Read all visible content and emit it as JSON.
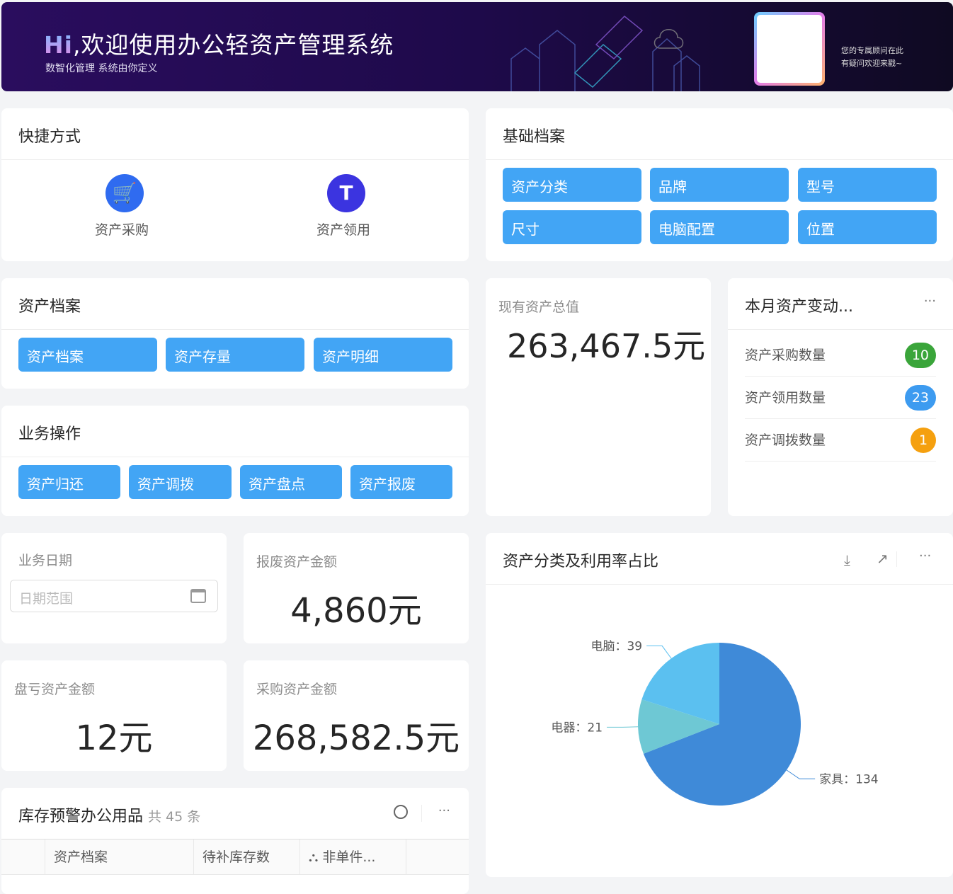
{
  "banner": {
    "hi": "Hi",
    "title": ",欢迎使用办公轻资产管理系统",
    "subtitle": "数智化管理 系统由你定义",
    "advisor_line1": "您的专属顾问在此",
    "advisor_line2": "有疑问欢迎来戳~"
  },
  "shortcuts": {
    "title": "快捷方式",
    "items": [
      {
        "label": "资产采购",
        "icon": "cart-icon",
        "color": "#2f6bf0"
      },
      {
        "label": "资产领用",
        "icon": "paint-roller-icon",
        "color": "#3b34e0"
      }
    ]
  },
  "basic": {
    "title": "基础档案",
    "buttons": [
      "资产分类",
      "品牌",
      "型号",
      "尺寸",
      "电脑配置",
      "位置"
    ]
  },
  "archive": {
    "title": "资产档案",
    "buttons": [
      "资产档案",
      "资产存量",
      "资产明细"
    ]
  },
  "ops": {
    "title": "业务操作",
    "buttons": [
      "资产归还",
      "资产调拨",
      "资产盘点",
      "资产报废"
    ]
  },
  "total": {
    "label": "现有资产总值",
    "value": "263,467.5元"
  },
  "monthly": {
    "title": "本月资产变动...",
    "more": "···",
    "rows": [
      {
        "label": "资产采购数量",
        "count": "10",
        "color": "#3aa53a"
      },
      {
        "label": "资产领用数量",
        "count": "23",
        "color": "#3d9bf0"
      },
      {
        "label": "资产调拨数量",
        "count": "1",
        "color": "#f5a00f"
      }
    ]
  },
  "date": {
    "label": "业务日期",
    "placeholder": "日期范围"
  },
  "scrap": {
    "label": "报废资产金额",
    "value": "4,860元"
  },
  "loss": {
    "label": "盘亏资产金额",
    "value": "12元"
  },
  "purchase": {
    "label": "采购资产金额",
    "value": "268,582.5元"
  },
  "stock": {
    "title": "库存预警办公用品",
    "count": "共 45 条",
    "more": "···",
    "columns": [
      "",
      "资产档案",
      "待补库存数",
      "非单件...",
      ""
    ]
  },
  "pie_card": {
    "title": "资产分类及利用率占比",
    "more": "···"
  },
  "chart_data": {
    "type": "pie",
    "slices": [
      {
        "name": "家具",
        "value": 134,
        "color": "#3f8ad8"
      },
      {
        "name": "电器",
        "value": 21,
        "color": "#6ec8d4"
      },
      {
        "name": "电脑",
        "value": 39,
        "color": "#5bc0f0"
      }
    ],
    "label_sep": "："
  }
}
